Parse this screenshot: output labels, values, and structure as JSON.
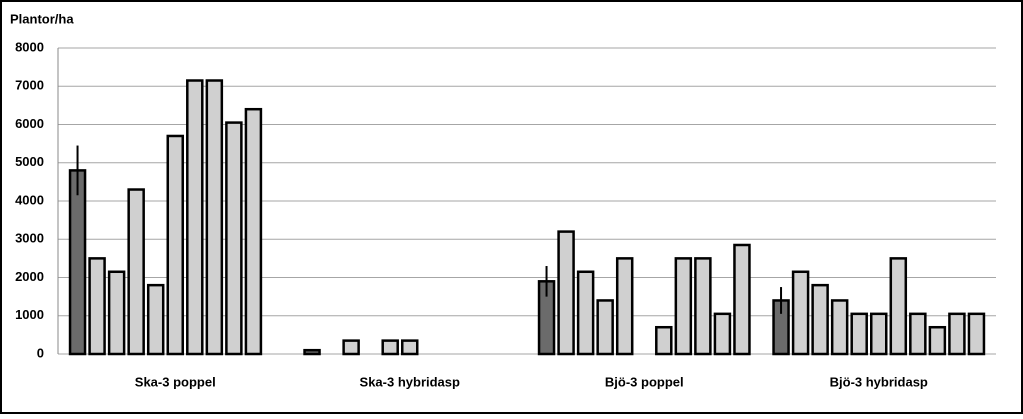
{
  "chart_data": {
    "type": "bar",
    "title": "Plantor/ha",
    "categories": [
      "Ska-3 poppel",
      "Ska-3 hybridasp",
      "Bjö-3 poppel",
      "Bjö-3 hybridasp"
    ],
    "series": [
      {
        "color": "#6b6b6b",
        "values": [
          4800,
          100,
          1900,
          1400
        ],
        "errors": [
          650,
          0,
          400,
          350
        ]
      },
      {
        "color": "#d0d0d0",
        "values": [
          2500,
          0,
          3200,
          2150
        ]
      },
      {
        "color": "#d0d0d0",
        "values": [
          2150,
          350,
          2150,
          1800
        ]
      },
      {
        "color": "#d0d0d0",
        "values": [
          4300,
          0,
          1400,
          1400
        ]
      },
      {
        "color": "#d0d0d0",
        "values": [
          1800,
          350,
          2500,
          1050
        ]
      },
      {
        "color": "#d0d0d0",
        "values": [
          5700,
          350,
          0,
          1050
        ]
      },
      {
        "color": "#d0d0d0",
        "values": [
          7150,
          0,
          700,
          2500
        ]
      },
      {
        "color": "#d0d0d0",
        "values": [
          7150,
          0,
          2500,
          1050
        ]
      },
      {
        "color": "#d0d0d0",
        "values": [
          6050,
          0,
          2500,
          700
        ]
      },
      {
        "color": "#d0d0d0",
        "values": [
          6400,
          0,
          1050,
          1050
        ]
      },
      {
        "color": "#d0d0d0",
        "values": [
          0,
          0,
          2850,
          1050
        ]
      }
    ],
    "ylim": [
      0,
      8000
    ],
    "yticks": [
      0,
      1000,
      2000,
      3000,
      4000,
      5000,
      6000,
      7000,
      8000
    ],
    "grid": true
  }
}
